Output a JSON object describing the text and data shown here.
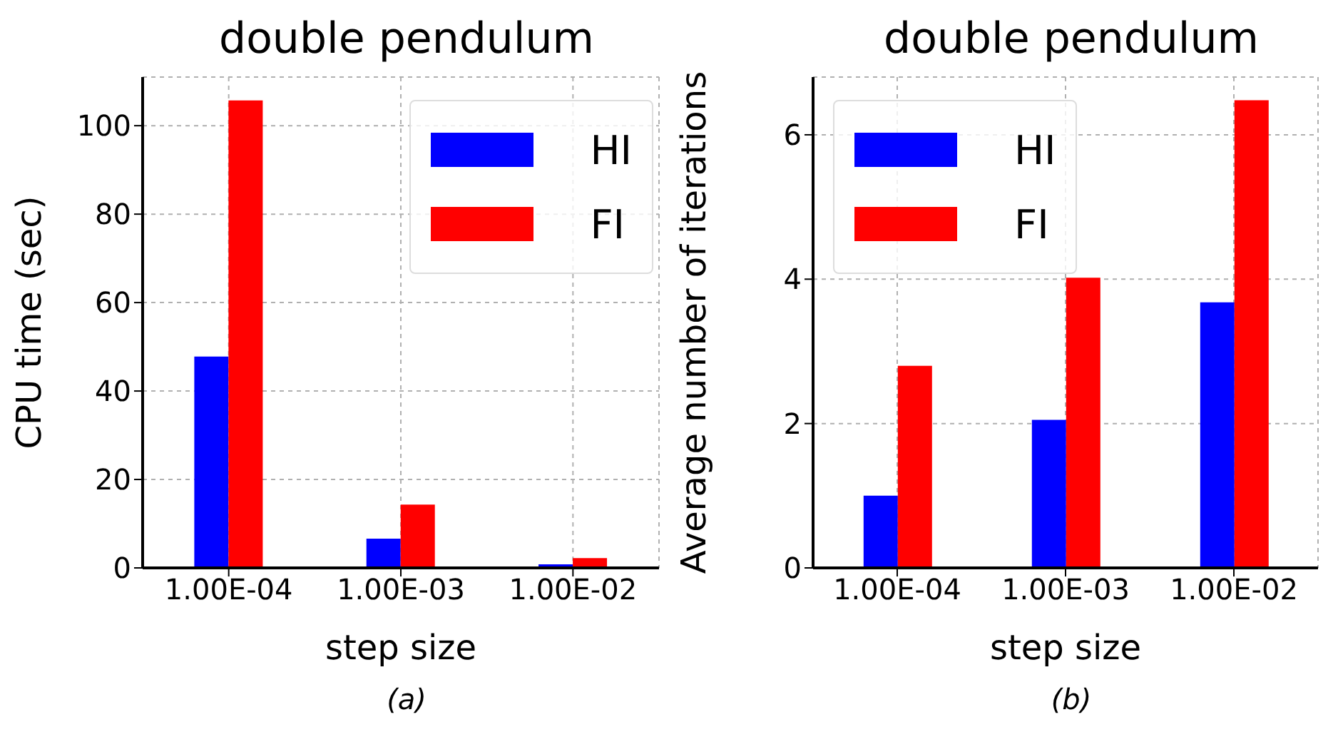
{
  "chart_data": [
    {
      "type": "bar",
      "title": "double pendulum",
      "xlabel": "step size",
      "ylabel": "CPU time (sec)",
      "categories": [
        "1.00E-04",
        "1.00E-03",
        "1.00E-02"
      ],
      "series": [
        {
          "name": "HI",
          "color": "#0000ff",
          "values": [
            47.8,
            6.6,
            0.8
          ]
        },
        {
          "name": "FI",
          "color": "#ff0000",
          "values": [
            105.7,
            14.3,
            2.2
          ]
        }
      ],
      "ylim": [
        0,
        111
      ],
      "yticks": [
        0,
        20,
        40,
        60,
        80,
        100
      ],
      "grid": true,
      "legend": "top right",
      "annotations": [
        "(a)"
      ]
    },
    {
      "type": "bar",
      "title": "double pendulum",
      "xlabel": "step size",
      "ylabel": "Average number of iterations",
      "categories": [
        "1.00E-04",
        "1.00E-03",
        "1.00E-02"
      ],
      "series": [
        {
          "name": "HI",
          "color": "#0000ff",
          "values": [
            1.0,
            2.05,
            3.68
          ]
        },
        {
          "name": "FI",
          "color": "#ff0000",
          "values": [
            2.8,
            4.02,
            6.48
          ]
        }
      ],
      "ylim": [
        0,
        6.8
      ],
      "yticks": [
        0,
        2,
        4,
        6
      ],
      "grid": true,
      "legend": "top left",
      "annotations": [
        "(b)"
      ]
    }
  ]
}
